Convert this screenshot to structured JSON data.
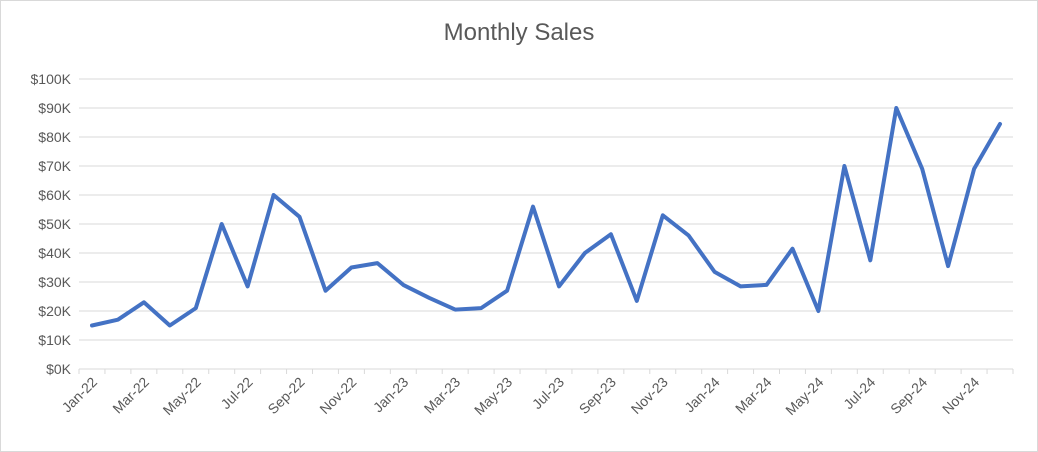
{
  "chart_data": {
    "type": "line",
    "title": "Monthly Sales",
    "xlabel": "",
    "ylabel": "",
    "ylim": [
      0,
      100000
    ],
    "y_ticks": [
      "$0K",
      "$10K",
      "$20K",
      "$30K",
      "$40K",
      "$50K",
      "$60K",
      "$70K",
      "$80K",
      "$90K",
      "$100K"
    ],
    "x_tick_labels": [
      "Jan-22",
      "Mar-22",
      "May-22",
      "Jul-22",
      "Sep-22",
      "Nov-22",
      "Jan-23",
      "Mar-23",
      "May-23",
      "Jul-23",
      "Sep-23",
      "Nov-23",
      "Jan-24",
      "Mar-24",
      "May-24",
      "Jul-24",
      "Sep-24",
      "Nov-24"
    ],
    "grid": true,
    "line_color": "#4472c4",
    "categories": [
      "Jan-22",
      "Feb-22",
      "Mar-22",
      "Apr-22",
      "May-22",
      "Jun-22",
      "Jul-22",
      "Aug-22",
      "Sep-22",
      "Oct-22",
      "Nov-22",
      "Dec-22",
      "Jan-23",
      "Feb-23",
      "Mar-23",
      "Apr-23",
      "May-23",
      "Jun-23",
      "Jul-23",
      "Aug-23",
      "Sep-23",
      "Oct-23",
      "Nov-23",
      "Dec-23",
      "Jan-24",
      "Feb-24",
      "Mar-24",
      "Apr-24",
      "May-24",
      "Jun-24",
      "Jul-24",
      "Aug-24",
      "Sep-24",
      "Oct-24",
      "Nov-24",
      "Dec-24"
    ],
    "series": [
      {
        "values": [
          15000,
          17000,
          23000,
          15000,
          21000,
          50000,
          28500,
          60000,
          52500,
          27000,
          35000,
          36500,
          29000,
          24500,
          20500,
          21000,
          27000,
          56000,
          28500,
          40000,
          46500,
          23500,
          53000,
          46000,
          33500,
          28500,
          29000,
          41500,
          20000,
          70000,
          37500,
          90000,
          69000,
          35500,
          69000,
          84500
        ]
      }
    ]
  }
}
